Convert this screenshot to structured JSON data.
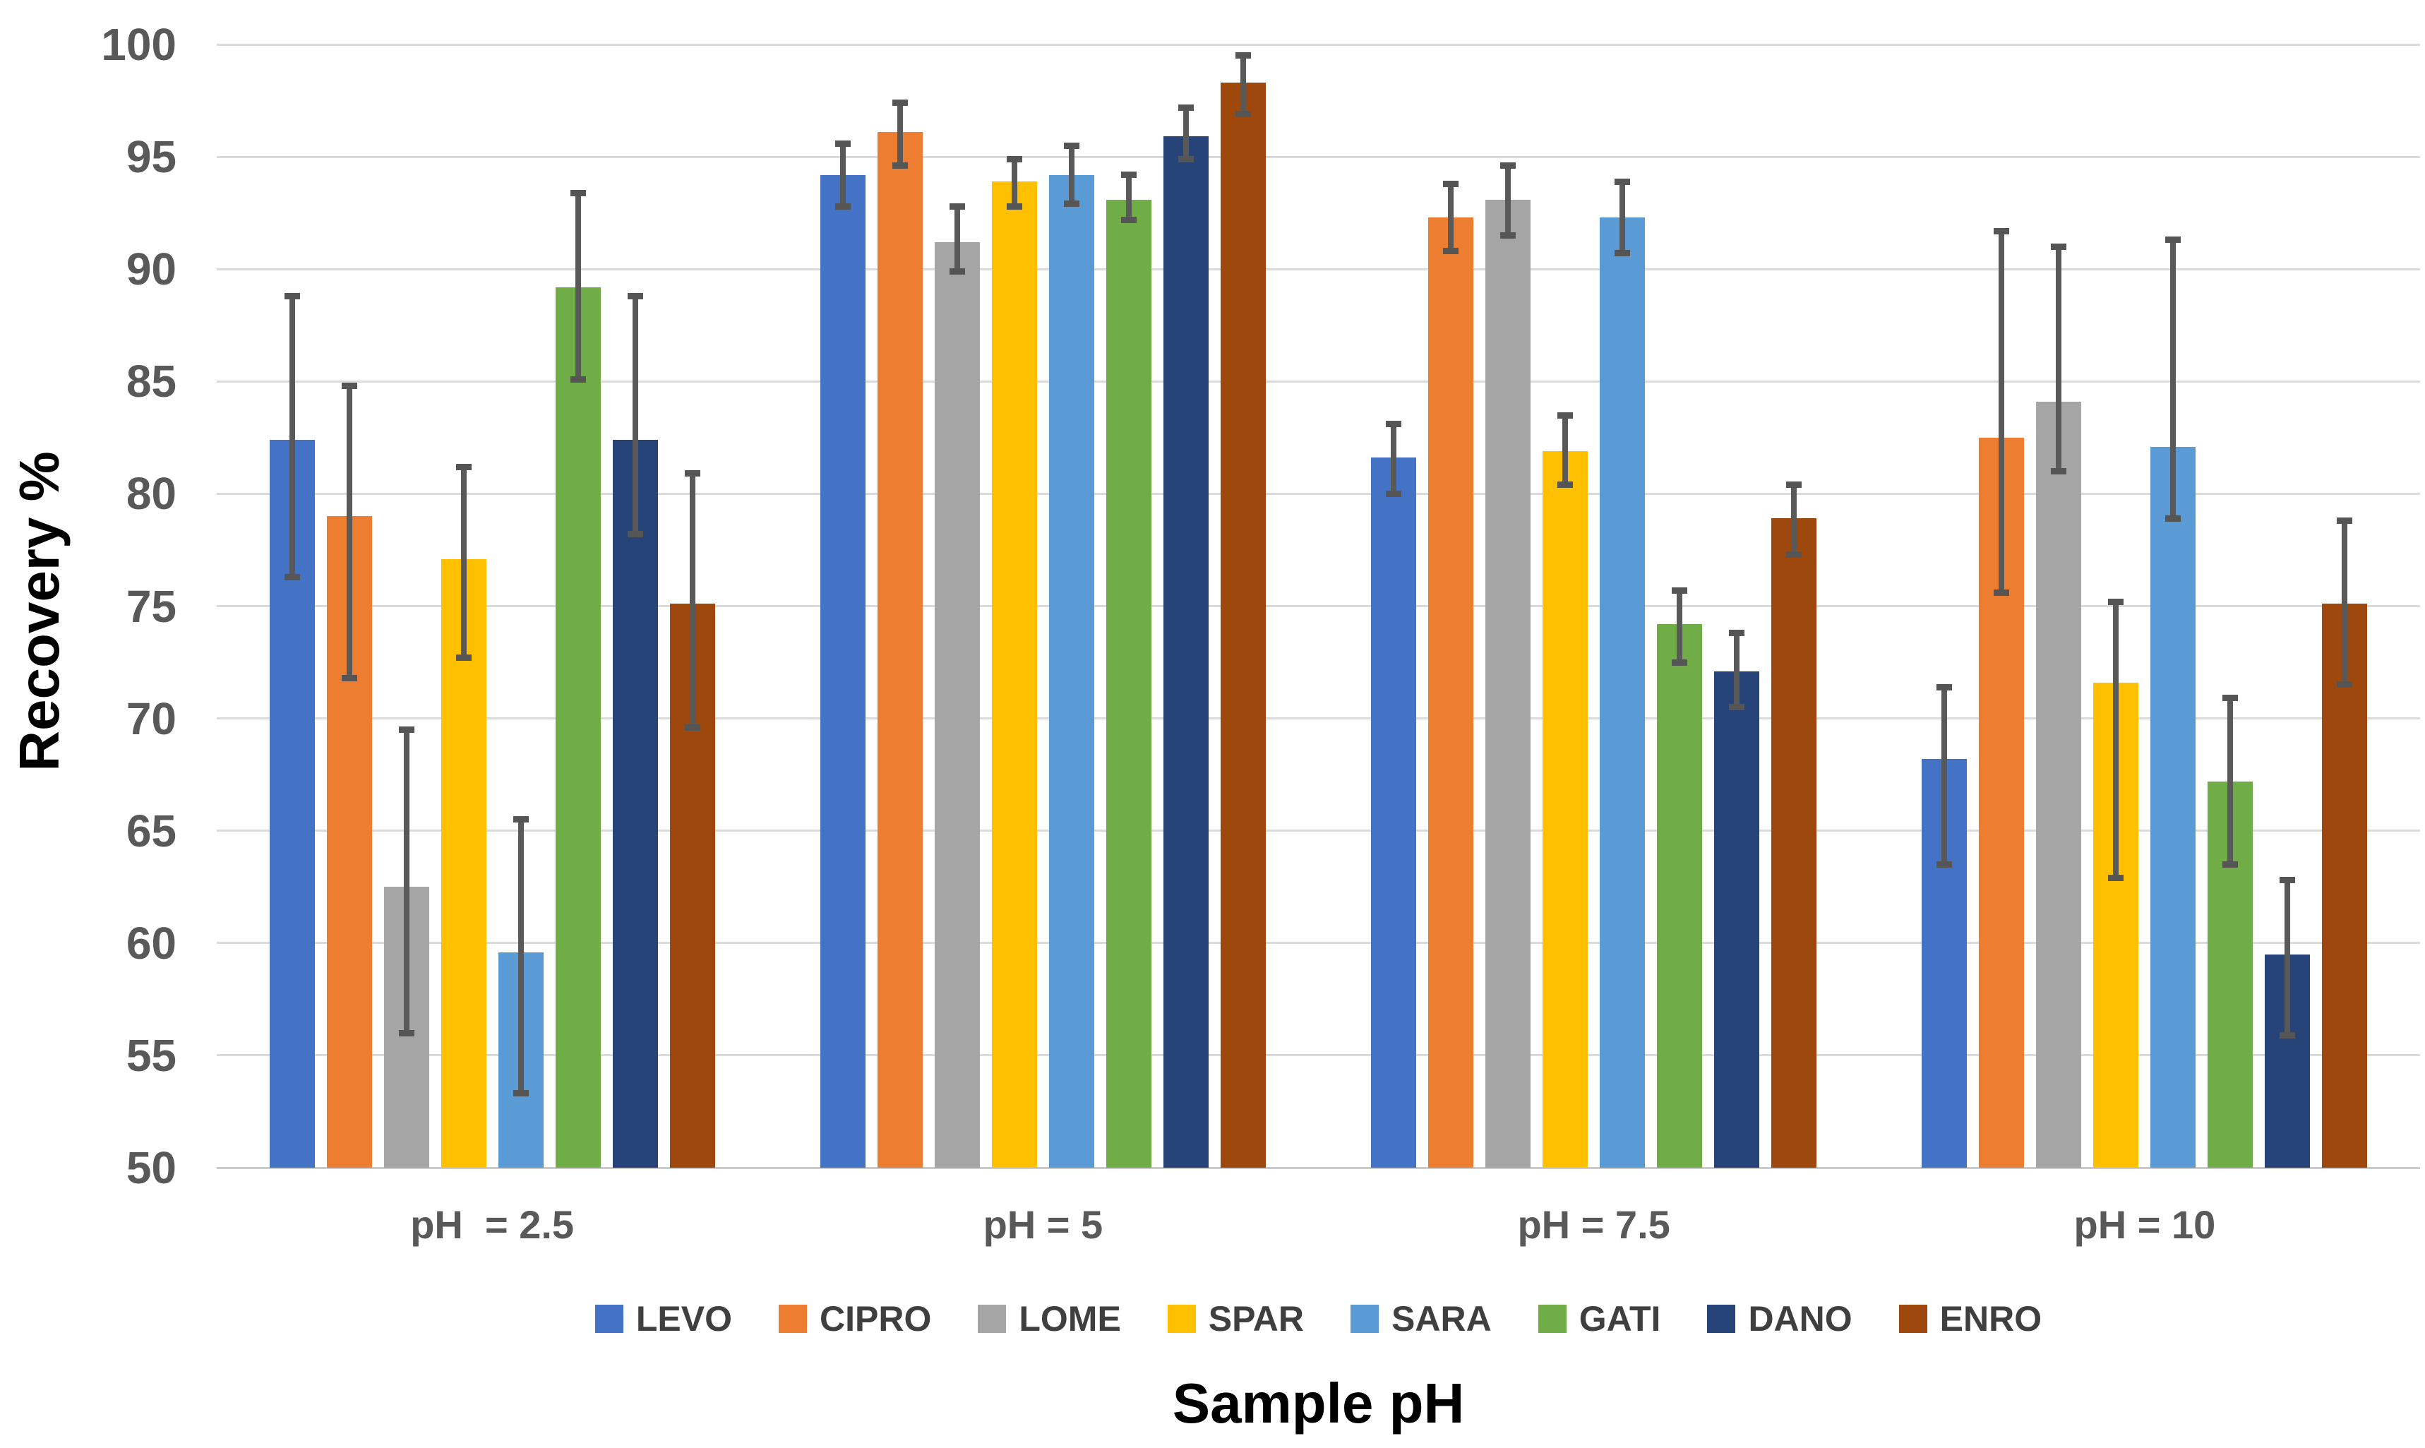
{
  "chart_data": {
    "type": "bar",
    "title": "",
    "ylabel": "Recovery %",
    "xlabel": "Sample pH",
    "ylim": [
      50,
      100
    ],
    "yticks": [
      100,
      95,
      90,
      85,
      80,
      75,
      70,
      65,
      60,
      55,
      50
    ],
    "grid": true,
    "legend_position": "bottom",
    "error_bars": true,
    "categories": [
      "pH  = 2.5",
      "pH = 5",
      "pH = 7.5",
      "pH = 10"
    ],
    "series": [
      {
        "name": "LEVO",
        "color": "#4472C4",
        "values": [
          82.4,
          94.2,
          81.6,
          68.2
        ],
        "whisker_low": [
          76.3,
          92.8,
          80.0,
          63.5
        ],
        "whisker_high": [
          88.8,
          95.6,
          83.1,
          71.4
        ]
      },
      {
        "name": "CIPRO",
        "color": "#ED7D31",
        "values": [
          79.0,
          96.1,
          92.3,
          82.5
        ],
        "whisker_low": [
          71.8,
          94.6,
          90.8,
          75.6
        ],
        "whisker_high": [
          84.8,
          97.4,
          93.8,
          91.7
        ]
      },
      {
        "name": "LOME",
        "color": "#A5A5A5",
        "values": [
          62.5,
          91.2,
          93.1,
          84.1
        ],
        "whisker_low": [
          56.0,
          89.9,
          91.5,
          81.0
        ],
        "whisker_high": [
          69.5,
          92.8,
          94.6,
          91.0
        ]
      },
      {
        "name": "SPAR",
        "color": "#FFC000",
        "values": [
          77.1,
          93.9,
          81.9,
          71.6
        ],
        "whisker_low": [
          72.7,
          92.8,
          80.4,
          62.9
        ],
        "whisker_high": [
          81.2,
          94.9,
          83.5,
          75.2
        ]
      },
      {
        "name": "SARA",
        "color": "#5B9BD5",
        "values": [
          59.6,
          94.2,
          92.3,
          82.1
        ],
        "whisker_low": [
          53.3,
          92.9,
          90.7,
          78.9
        ],
        "whisker_high": [
          65.5,
          95.5,
          93.9,
          91.3
        ]
      },
      {
        "name": "GATI",
        "color": "#70AD47",
        "values": [
          89.2,
          93.1,
          74.2,
          67.2
        ],
        "whisker_low": [
          85.1,
          92.2,
          72.5,
          63.5
        ],
        "whisker_high": [
          93.4,
          94.2,
          75.7,
          70.9
        ]
      },
      {
        "name": "DANO",
        "color": "#264478",
        "values": [
          82.4,
          95.9,
          72.1,
          59.5
        ],
        "whisker_low": [
          78.2,
          94.9,
          70.5,
          55.9
        ],
        "whisker_high": [
          88.8,
          97.2,
          73.8,
          62.8
        ]
      },
      {
        "name": "ENRO",
        "color": "#9E480E",
        "values": [
          75.1,
          98.3,
          78.9,
          75.1
        ],
        "whisker_low": [
          69.6,
          96.9,
          77.3,
          71.5
        ],
        "whisker_high": [
          80.9,
          99.5,
          80.4,
          78.8
        ]
      }
    ],
    "colors": {
      "grid": "#DBDBDB",
      "axis_line": "#CBCBCB",
      "tick_label": "#595959",
      "error_bar": "#595959",
      "legend_text": "#3F3F3F",
      "title_text": "#000000",
      "background": "#FFFFFF"
    }
  }
}
